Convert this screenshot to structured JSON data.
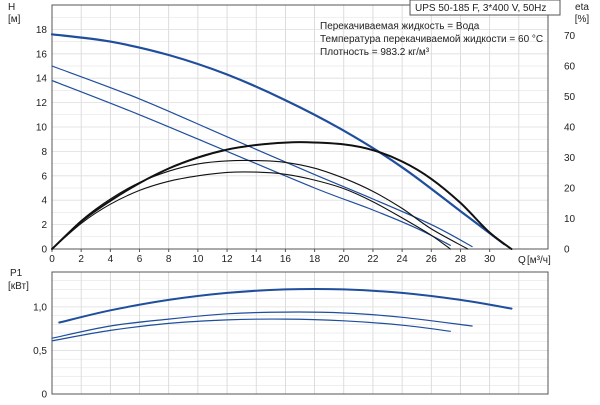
{
  "chart_data": [
    {
      "type": "line",
      "title": "UPS 50-185 F, 3*400 V, 50Hz",
      "info": [
        "Перекачиваемая жидкость = Вода",
        "Температура перекачиваемой жидкости = 60 °C",
        "Плотность = 983.2 кг/м³"
      ],
      "ylabel": "H",
      "yunit": "[м]",
      "y2label": "eta",
      "y2unit": "[%]",
      "xlabel": "Q",
      "xunit": "[м³/ч]",
      "xlim": [
        0,
        34
      ],
      "ylim": [
        0,
        20
      ],
      "y2lim": [
        0,
        80
      ],
      "x_ticks": [
        "0",
        "2",
        "4",
        "6",
        "8",
        "10",
        "12",
        "14",
        "16",
        "18",
        "20",
        "22",
        "24",
        "26",
        "28",
        "30"
      ],
      "y_ticks": [
        "0",
        "2",
        "4",
        "6",
        "8",
        "10",
        "12",
        "14",
        "16",
        "18"
      ],
      "y2_ticks": [
        "0",
        "10",
        "20",
        "30",
        "40",
        "50",
        "60",
        "70"
      ],
      "grid": true,
      "series": [
        {
          "axis": "H",
          "color": "#1f4e9c",
          "width": 2.2,
          "points": [
            [
              0,
              17.6
            ],
            [
              4,
              17.0
            ],
            [
              8,
              15.9
            ],
            [
              12,
              14.3
            ],
            [
              16,
              12.2
            ],
            [
              20,
              9.7
            ],
            [
              24,
              6.7
            ],
            [
              28,
              3.1
            ],
            [
              31,
              0.4
            ]
          ]
        },
        {
          "axis": "H",
          "color": "#1f4e9c",
          "width": 1.2,
          "points": [
            [
              0,
              15.0
            ],
            [
              6,
              12.3
            ],
            [
              12,
              9.2
            ],
            [
              18,
              6.1
            ],
            [
              22,
              4.1
            ],
            [
              26,
              2.0
            ],
            [
              28.8,
              0.2
            ]
          ]
        },
        {
          "axis": "H",
          "color": "#1f4e9c",
          "width": 1.2,
          "points": [
            [
              0,
              13.8
            ],
            [
              6,
              11.0
            ],
            [
              12,
              8.0
            ],
            [
              18,
              5.0
            ],
            [
              22,
              3.2
            ],
            [
              25,
              1.7
            ],
            [
              27.3,
              0.3
            ]
          ]
        },
        {
          "axis": "eta",
          "color": "#111111",
          "width": 2.0,
          "points": [
            [
              0,
              0
            ],
            [
              2,
              9
            ],
            [
              4,
              15.8
            ],
            [
              6,
              21.6
            ],
            [
              8,
              26.4
            ],
            [
              10,
              30.0
            ],
            [
              12,
              32.6
            ],
            [
              14,
              34.1
            ],
            [
              16,
              34.9
            ],
            [
              17.5,
              35.0
            ],
            [
              20,
              34.3
            ],
            [
              22,
              32.4
            ],
            [
              24,
              28.7
            ],
            [
              26,
              23.0
            ],
            [
              28,
              15.1
            ],
            [
              30,
              5.4
            ],
            [
              31.5,
              0
            ]
          ]
        },
        {
          "axis": "eta",
          "color": "#111111",
          "width": 1.1,
          "points": [
            [
              0,
              0
            ],
            [
              2,
              9.3
            ],
            [
              4,
              16.4
            ],
            [
              6,
              21.8
            ],
            [
              8,
              25.5
            ],
            [
              10,
              27.9
            ],
            [
              12,
              28.9
            ],
            [
              14,
              29.0
            ],
            [
              16,
              28.4
            ],
            [
              18,
              26.5
            ],
            [
              20,
              23.2
            ],
            [
              22,
              18.9
            ],
            [
              24,
              13.3
            ],
            [
              26,
              6.6
            ],
            [
              28.5,
              0
            ]
          ]
        },
        {
          "axis": "eta",
          "color": "#111111",
          "width": 1.1,
          "points": [
            [
              0,
              0
            ],
            [
              2,
              8.4
            ],
            [
              4,
              14.7
            ],
            [
              6,
              19.2
            ],
            [
              8,
              22.2
            ],
            [
              10,
              24.0
            ],
            [
              12,
              25.1
            ],
            [
              14,
              25.2
            ],
            [
              16,
              24.5
            ],
            [
              18,
              22.6
            ],
            [
              20,
              19.8
            ],
            [
              22,
              15.5
            ],
            [
              24,
              10.2
            ],
            [
              26,
              4.5
            ],
            [
              27.3,
              0
            ]
          ]
        }
      ]
    },
    {
      "type": "line",
      "ylabel": "P1",
      "yunit": "[кВт]",
      "xlim": [
        0,
        34
      ],
      "ylim": [
        0,
        1.4
      ],
      "y_ticks": [
        "0",
        "0,5",
        "1,0"
      ],
      "grid": true,
      "series": [
        {
          "color": "#1f4e9c",
          "width": 2.0,
          "points": [
            [
              0.5,
              0.82
            ],
            [
              4,
              0.96
            ],
            [
              8,
              1.08
            ],
            [
              12,
              1.16
            ],
            [
              16,
              1.2
            ],
            [
              20,
              1.2
            ],
            [
              24,
              1.16
            ],
            [
              28,
              1.08
            ],
            [
              31.5,
              0.98
            ]
          ]
        },
        {
          "color": "#1f4e9c",
          "width": 1.2,
          "points": [
            [
              0,
              0.64
            ],
            [
              4,
              0.78
            ],
            [
              8,
              0.86
            ],
            [
              12,
              0.92
            ],
            [
              16,
              0.94
            ],
            [
              20,
              0.93
            ],
            [
              24,
              0.88
            ],
            [
              28.8,
              0.78
            ]
          ]
        },
        {
          "color": "#1f4e9c",
          "width": 1.2,
          "points": [
            [
              0,
              0.61
            ],
            [
              4,
              0.73
            ],
            [
              8,
              0.81
            ],
            [
              12,
              0.85
            ],
            [
              16,
              0.86
            ],
            [
              20,
              0.84
            ],
            [
              24,
              0.79
            ],
            [
              27.3,
              0.72
            ]
          ]
        }
      ]
    }
  ]
}
